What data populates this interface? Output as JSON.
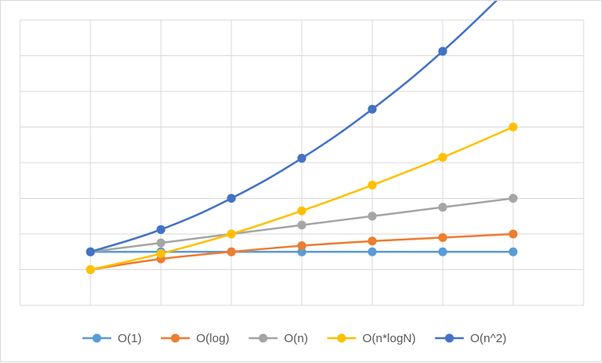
{
  "chart_data": {
    "type": "line",
    "title": "",
    "xlabel": "",
    "ylabel": "",
    "x": [
      1,
      2,
      3,
      4,
      5,
      6,
      7
    ],
    "ylim": [
      -1,
      7
    ],
    "y_gridlines": 8,
    "x_gridlines": 8,
    "grid": true,
    "smooth": true,
    "legend_position": "bottom",
    "series": [
      {
        "name": "O(1)",
        "color": "#5b9bd5",
        "values": [
          0.5,
          0.5,
          0.5,
          0.5,
          0.5,
          0.5,
          0.5
        ]
      },
      {
        "name": "O(log)",
        "color": "#ed7d31",
        "values": [
          0,
          0.3,
          0.5,
          0.67,
          0.8,
          0.9,
          1.0
        ]
      },
      {
        "name": "O(n)",
        "color": "#a5a5a5",
        "values": [
          0.5,
          0.75,
          1.0,
          1.25,
          1.5,
          1.75,
          2.0
        ]
      },
      {
        "name": "O(n*logN)",
        "color": "#ffc000",
        "values": [
          0,
          0.45,
          1.0,
          1.65,
          2.37,
          3.15,
          4.0
        ]
      },
      {
        "name": "O(n^2)",
        "color": "#4472c4",
        "values": [
          0.5,
          1.125,
          2.0,
          3.125,
          4.5,
          6.125,
          8.0
        ]
      }
    ]
  }
}
